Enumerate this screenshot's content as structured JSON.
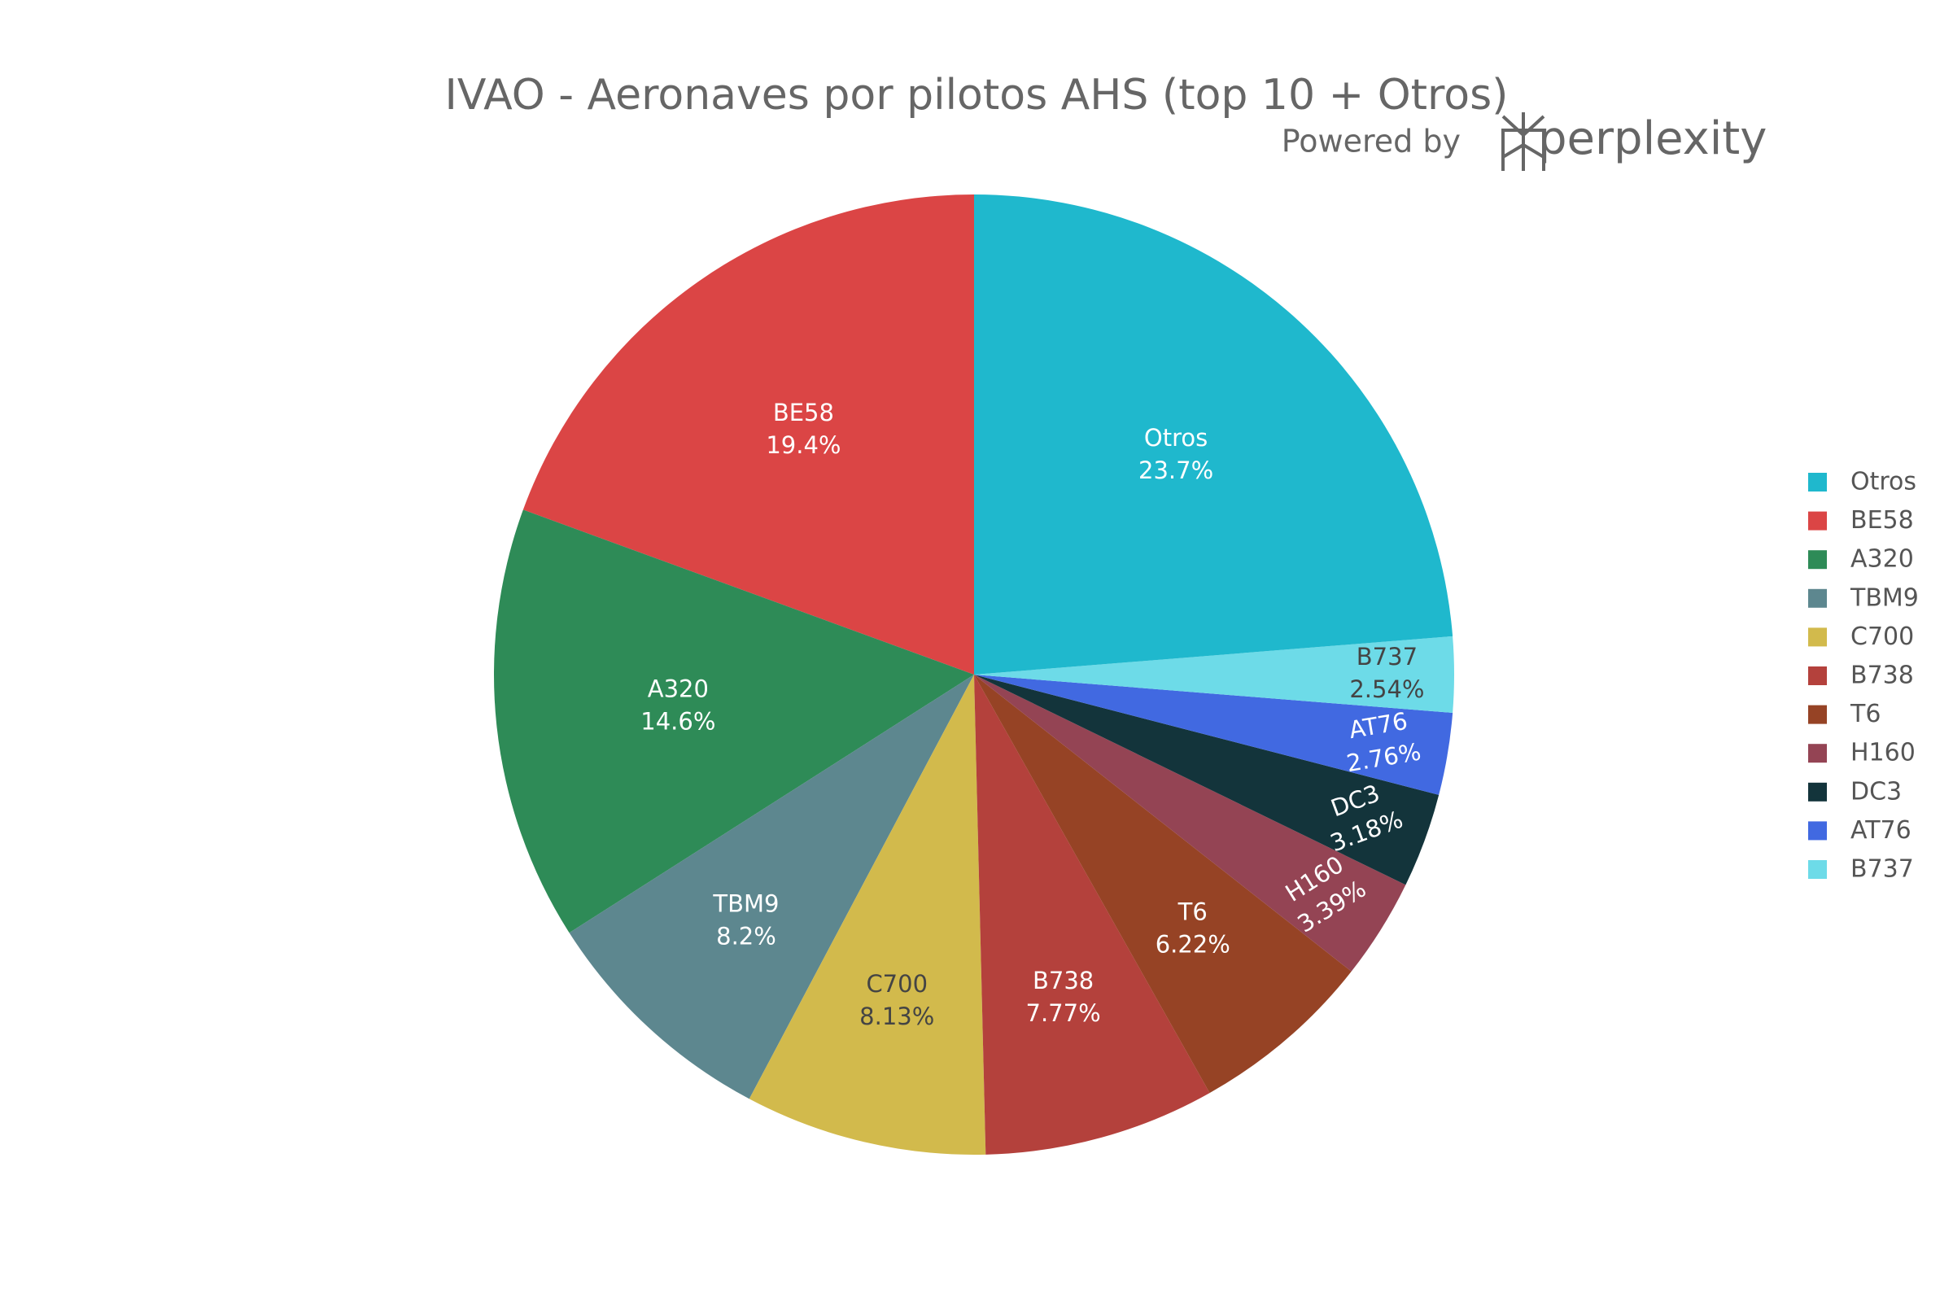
{
  "chart_data": {
    "type": "pie",
    "title": "IVAO - Aeronaves por pilotos AHS (top 10 + Otros)",
    "watermark": {
      "prefix": "Powered by",
      "brand": "perplexity"
    },
    "categories": [
      "Otros",
      "BE58",
      "A320",
      "TBM9",
      "C700",
      "B738",
      "T6",
      "H160",
      "DC3",
      "AT76",
      "B737"
    ],
    "values": [
      23.7,
      19.4,
      14.6,
      8.2,
      8.13,
      7.77,
      6.22,
      3.39,
      3.18,
      2.76,
      2.54
    ],
    "value_labels": [
      "23.7%",
      "19.4%",
      "14.6%",
      "8.2%",
      "8.13%",
      "7.77%",
      "6.22%",
      "3.39%",
      "3.18%",
      "2.76%",
      "2.54%"
    ],
    "colors": [
      "#1fb8cd",
      "#db4545",
      "#2e8b57",
      "#5d878f",
      "#d2ba4c",
      "#b4413c",
      "#964325",
      "#944454",
      "#13343b",
      "#4169e1",
      "#6ddbe8"
    ],
    "legend": "right"
  }
}
